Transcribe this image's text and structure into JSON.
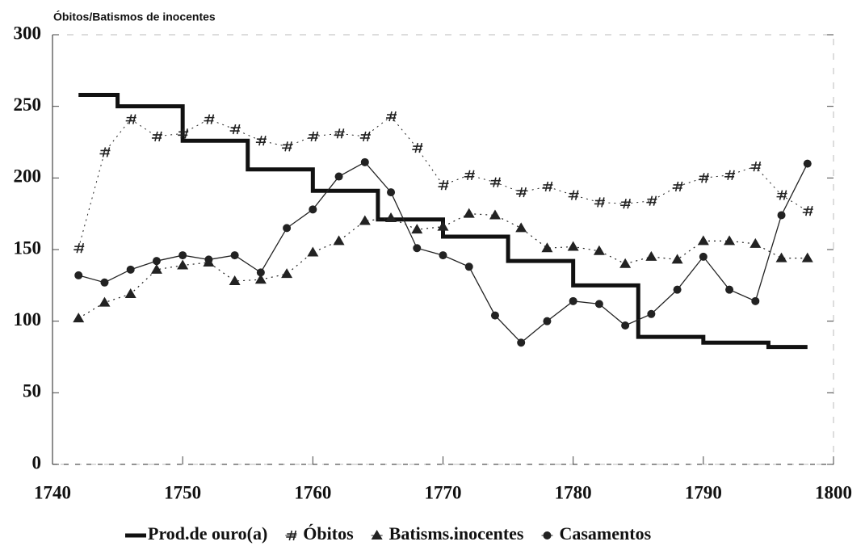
{
  "chart_data": {
    "type": "line",
    "title": "Óbitos/Batismos de inocentes",
    "xlim": [
      1740,
      1800
    ],
    "xticks": [
      1740,
      1750,
      1760,
      1770,
      1780,
      1790,
      1800
    ],
    "ylim": [
      0,
      300
    ],
    "yticks": [
      0,
      50,
      100,
      150,
      200,
      250,
      300
    ],
    "legend": "bottom",
    "series": [
      {
        "name": "Prod.de ouro(a)",
        "color": "#111111",
        "line": "step",
        "marker": "none",
        "width": 5,
        "x": [
          1742,
          1745,
          1750,
          1755,
          1760,
          1765,
          1770,
          1775,
          1780,
          1785,
          1790,
          1795,
          1798
        ],
        "values": [
          258,
          250,
          226,
          206,
          191,
          171,
          159,
          142,
          125,
          89,
          85,
          82,
          82
        ]
      },
      {
        "name": "Óbitos",
        "color": "#222222",
        "line": "dotted",
        "marker": "hash",
        "width": 1,
        "x": [
          1742,
          1744,
          1746,
          1748,
          1750,
          1752,
          1754,
          1756,
          1758,
          1760,
          1762,
          1764,
          1766,
          1768,
          1770,
          1772,
          1774,
          1776,
          1778,
          1780,
          1782,
          1784,
          1786,
          1788,
          1790,
          1792,
          1794,
          1796,
          1798
        ],
        "values": [
          151,
          218,
          241,
          229,
          231,
          241,
          234,
          226,
          222,
          229,
          231,
          229,
          243,
          221,
          195,
          202,
          197,
          190,
          194,
          188,
          183,
          182,
          184,
          194,
          200,
          202,
          208,
          188,
          177
        ]
      },
      {
        "name": "Batisms.inocentes",
        "color": "#222222",
        "line": "dotted",
        "marker": "triangle",
        "width": 1.2,
        "x": [
          1742,
          1744,
          1746,
          1748,
          1750,
          1752,
          1754,
          1756,
          1758,
          1760,
          1762,
          1764,
          1766,
          1768,
          1770,
          1772,
          1774,
          1776,
          1778,
          1780,
          1782,
          1784,
          1786,
          1788,
          1790,
          1792,
          1794,
          1796,
          1798
        ],
        "values": [
          102,
          113,
          119,
          136,
          139,
          141,
          128,
          129,
          133,
          148,
          156,
          170,
          172,
          164,
          166,
          175,
          174,
          165,
          151,
          152,
          149,
          140,
          145,
          143,
          156,
          156,
          154,
          144,
          144
        ]
      },
      {
        "name": "Casamentos",
        "color": "#222222",
        "line": "solid",
        "marker": "circle",
        "width": 1.3,
        "x": [
          1742,
          1744,
          1746,
          1748,
          1750,
          1752,
          1754,
          1756,
          1758,
          1760,
          1762,
          1764,
          1766,
          1768,
          1770,
          1772,
          1774,
          1776,
          1778,
          1780,
          1782,
          1784,
          1786,
          1788,
          1790,
          1792,
          1794,
          1796,
          1798
        ],
        "values": [
          132,
          127,
          136,
          142,
          146,
          143,
          146,
          134,
          165,
          178,
          201,
          211,
          190,
          151,
          146,
          138,
          104,
          85,
          100,
          114,
          112,
          97,
          105,
          122,
          145,
          122,
          114,
          174,
          210
        ]
      }
    ]
  }
}
